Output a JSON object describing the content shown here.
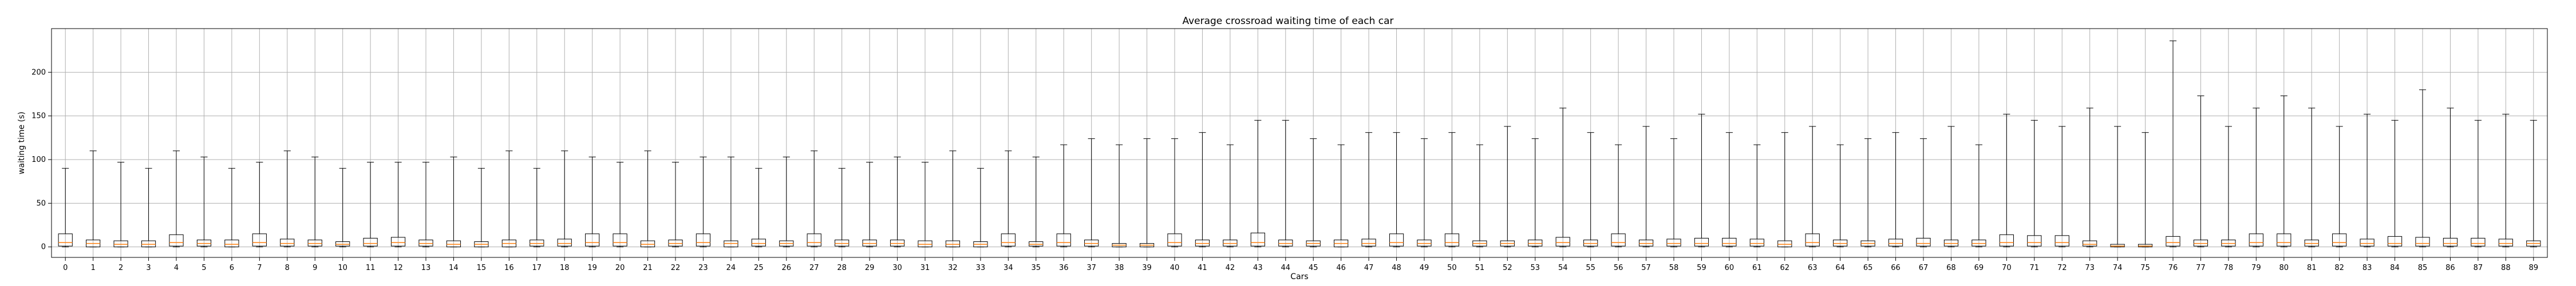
{
  "chart_data": {
    "type": "boxplot",
    "title": "Average crossroad waiting time of each car",
    "xlabel": "Cars",
    "ylabel": "waiting time (s)",
    "ylim": [
      -12,
      250
    ],
    "yticks": [
      0,
      50,
      100,
      150,
      200
    ],
    "grid": true,
    "box_color": "#000000",
    "median_color": "#ff7f0e",
    "grid_color": "#b0b0b0",
    "categories": [
      "0",
      "1",
      "2",
      "3",
      "4",
      "5",
      "6",
      "7",
      "8",
      "9",
      "10",
      "11",
      "12",
      "13",
      "14",
      "15",
      "16",
      "17",
      "18",
      "19",
      "20",
      "21",
      "22",
      "23",
      "24",
      "25",
      "26",
      "27",
      "28",
      "29",
      "30",
      "31",
      "32",
      "33",
      "34",
      "35",
      "36",
      "37",
      "38",
      "39",
      "40",
      "41",
      "42",
      "43",
      "44",
      "45",
      "46",
      "47",
      "48",
      "49",
      "50",
      "51",
      "52",
      "53",
      "54",
      "55",
      "56",
      "57",
      "58",
      "59",
      "60",
      "61",
      "62",
      "63",
      "64",
      "65",
      "66",
      "67",
      "68",
      "69",
      "70",
      "71",
      "72",
      "73",
      "74",
      "75",
      "76",
      "77",
      "78",
      "79",
      "80",
      "81",
      "82",
      "83",
      "84",
      "85",
      "86",
      "87",
      "88",
      "89"
    ],
    "series": [
      {
        "whisker_low": [
          0,
          0,
          0,
          0,
          0,
          0,
          0,
          0,
          0,
          0,
          0,
          0,
          0,
          0,
          0,
          0,
          0,
          0,
          0,
          0,
          0,
          0,
          0,
          0,
          0,
          0,
          0,
          0,
          0,
          0,
          0,
          0,
          0,
          0,
          0,
          0,
          0,
          0,
          0,
          0,
          0,
          0,
          0,
          0,
          0,
          0,
          0,
          0,
          0,
          0,
          0,
          0,
          0,
          0,
          0,
          0,
          0,
          0,
          0,
          0,
          0,
          0,
          0,
          0,
          0,
          0,
          0,
          0,
          0,
          0,
          0,
          0,
          0,
          0,
          0,
          0,
          0,
          0,
          0,
          0,
          0,
          0,
          0,
          0,
          0,
          0,
          0,
          0,
          0,
          0
        ],
        "q1": [
          1,
          0,
          0,
          0,
          1,
          1,
          0,
          1,
          1,
          1,
          1,
          1,
          1,
          1,
          0,
          0,
          0,
          1,
          1,
          1,
          1,
          0,
          1,
          1,
          0,
          1,
          1,
          1,
          1,
          1,
          1,
          0,
          0,
          0,
          1,
          1,
          1,
          1,
          0,
          0,
          1,
          1,
          1,
          1,
          1,
          1,
          0,
          1,
          1,
          1,
          1,
          1,
          1,
          1,
          1,
          1,
          1,
          1,
          1,
          1,
          1,
          1,
          0,
          1,
          1,
          1,
          1,
          1,
          1,
          1,
          1,
          1,
          1,
          1,
          0,
          0,
          1,
          1,
          1,
          1,
          1,
          1,
          1,
          1,
          1,
          1,
          1,
          1,
          1,
          1
        ],
        "median": [
          5,
          4,
          3,
          3,
          5,
          4,
          3,
          5,
          4,
          4,
          3,
          4,
          5,
          4,
          3,
          3,
          4,
          4,
          4,
          5,
          5,
          3,
          4,
          5,
          4,
          4,
          4,
          5,
          4,
          4,
          4,
          3,
          3,
          3,
          5,
          3,
          5,
          4,
          2,
          2,
          5,
          4,
          4,
          5,
          4,
          4,
          4,
          4,
          5,
          4,
          5,
          4,
          4,
          4,
          5,
          4,
          5,
          4,
          4,
          4,
          4,
          4,
          3,
          5,
          4,
          4,
          4,
          4,
          4,
          4,
          5,
          5,
          5,
          3,
          1,
          1,
          5,
          4,
          4,
          5,
          5,
          4,
          5,
          4,
          4,
          4,
          4,
          4,
          4,
          4
        ],
        "q3": [
          15,
          8,
          7,
          7,
          14,
          8,
          8,
          15,
          9,
          8,
          6,
          10,
          11,
          8,
          7,
          6,
          8,
          8,
          9,
          15,
          15,
          7,
          8,
          15,
          7,
          9,
          7,
          15,
          8,
          8,
          8,
          7,
          7,
          6,
          15,
          6,
          15,
          8,
          4,
          4,
          15,
          8,
          8,
          16,
          8,
          7,
          8,
          9,
          15,
          8,
          15,
          7,
          7,
          8,
          11,
          8,
          15,
          8,
          9,
          10,
          10,
          9,
          7,
          15,
          8,
          7,
          9,
          10,
          8,
          8,
          14,
          13,
          13,
          7,
          3,
          3,
          12,
          8,
          8,
          15,
          15,
          8,
          15,
          9,
          12,
          11,
          10,
          10,
          9,
          7
        ],
        "whisker_high": [
          90,
          110,
          97,
          90,
          110,
          103,
          90,
          97,
          110,
          103,
          90,
          97,
          97,
          97,
          103,
          90,
          110,
          90,
          110,
          103,
          97,
          110,
          97,
          103,
          103,
          90,
          103,
          110,
          90,
          97,
          103,
          97,
          110,
          90,
          110,
          103,
          117,
          124,
          117,
          124,
          124,
          131,
          117,
          145,
          145,
          124,
          117,
          131,
          131,
          124,
          131,
          117,
          138,
          124,
          159,
          131,
          117,
          138,
          124,
          152,
          131,
          117,
          131,
          138,
          117,
          124,
          131,
          124,
          138,
          117,
          152,
          145,
          138,
          159,
          138,
          131,
          236,
          173,
          138,
          159,
          173,
          159,
          138,
          152,
          145,
          180,
          159,
          145,
          152,
          145
        ]
      }
    ]
  }
}
